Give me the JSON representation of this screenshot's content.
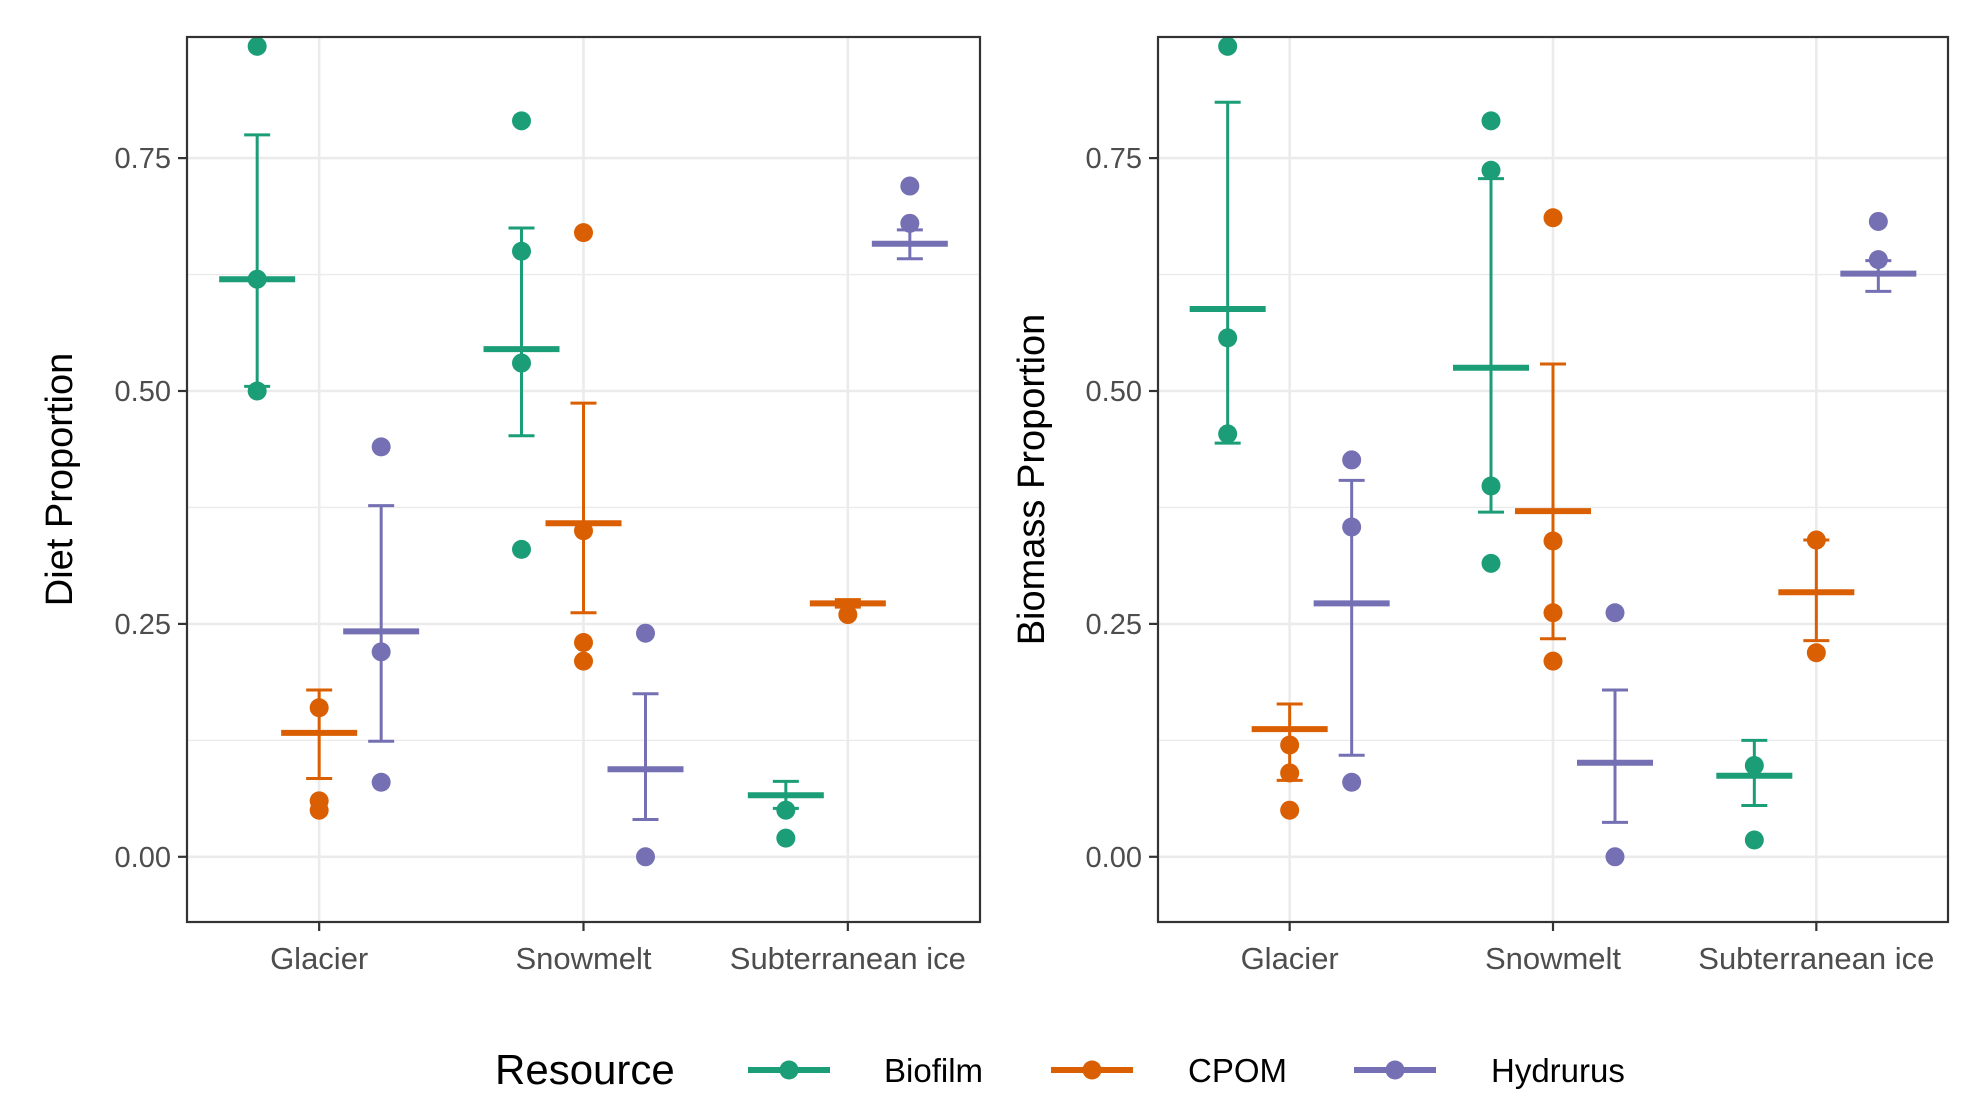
{
  "colors": {
    "Biofilm": "#1b9e77",
    "CPOM": "#d95f02",
    "Hydrurus": "#7570b3",
    "grid": "#ebebeb",
    "frame": "#333333",
    "tick_text": "#4d4d4d"
  },
  "legend": {
    "title": "Resource",
    "items": [
      "Biofilm",
      "CPOM",
      "Hydrurus"
    ]
  },
  "chart_data": [
    {
      "type": "scatter",
      "title": "",
      "xlabel": "",
      "ylabel": "Diet Proportion",
      "categories": [
        "Glacier",
        "Snowmelt",
        "Subterranean ice"
      ],
      "ylim": [
        -0.07,
        0.88
      ],
      "yticks": [
        0.0,
        0.25,
        0.5,
        0.75
      ],
      "ytick_labels": [
        "0.00",
        "0.25",
        "0.50",
        "0.75"
      ],
      "series": [
        {
          "name": "Biofilm",
          "groups": [
            {
              "category": "Glacier",
              "points": [
                0.87,
                0.62,
                0.5
              ],
              "mean": 0.62,
              "lower": 0.505,
              "upper": 0.775
            },
            {
              "category": "Snowmelt",
              "points": [
                0.79,
                0.65,
                0.53,
                0.33
              ],
              "mean": 0.545,
              "lower": 0.452,
              "upper": 0.675
            },
            {
              "category": "Subterranean ice",
              "points": [
                0.05,
                0.02
              ],
              "mean": 0.066,
              "lower": 0.052,
              "upper": 0.081
            }
          ]
        },
        {
          "name": "CPOM",
          "groups": [
            {
              "category": "Glacier",
              "points": [
                0.16,
                0.06,
                0.05
              ],
              "mean": 0.133,
              "lower": 0.084,
              "upper": 0.179
            },
            {
              "category": "Snowmelt",
              "points": [
                0.67,
                0.35,
                0.23,
                0.21
              ],
              "mean": 0.358,
              "lower": 0.262,
              "upper": 0.487
            },
            {
              "category": "Subterranean ice",
              "points": [
                0.26
              ],
              "mean": 0.272,
              "lower": 0.268,
              "upper": 0.276
            }
          ]
        },
        {
          "name": "Hydrurus",
          "groups": [
            {
              "category": "Glacier",
              "points": [
                0.44,
                0.22,
                0.08
              ],
              "mean": 0.242,
              "lower": 0.124,
              "upper": 0.377
            },
            {
              "category": "Snowmelt",
              "points": [
                0.24,
                0.0
              ],
              "mean": 0.094,
              "lower": 0.04,
              "upper": 0.175
            },
            {
              "category": "Subterranean ice",
              "points": [
                0.72,
                0.68
              ],
              "mean": 0.658,
              "lower": 0.642,
              "upper": 0.673
            }
          ]
        }
      ]
    },
    {
      "type": "scatter",
      "title": "",
      "xlabel": "",
      "ylabel": "Biomass Proportion",
      "categories": [
        "Glacier",
        "Snowmelt",
        "Subterranean ice"
      ],
      "ylim": [
        -0.07,
        0.88
      ],
      "yticks": [
        0.0,
        0.25,
        0.5,
        0.75
      ],
      "ytick_labels": [
        "0.00",
        "0.25",
        "0.50",
        "0.75"
      ],
      "series": [
        {
          "name": "Biofilm",
          "groups": [
            {
              "category": "Glacier",
              "points": [
                0.87,
                0.557,
                0.454
              ],
              "mean": 0.588,
              "lower": 0.444,
              "upper": 0.81
            },
            {
              "category": "Snowmelt",
              "points": [
                0.79,
                0.737,
                0.398,
                0.315
              ],
              "mean": 0.525,
              "lower": 0.37,
              "upper": 0.728
            },
            {
              "category": "Subterranean ice",
              "points": [
                0.098,
                0.018
              ],
              "mean": 0.087,
              "lower": 0.055,
              "upper": 0.125
            }
          ]
        },
        {
          "name": "CPOM",
          "groups": [
            {
              "category": "Glacier",
              "points": [
                0.12,
                0.09,
                0.05
              ],
              "mean": 0.137,
              "lower": 0.082,
              "upper": 0.164
            },
            {
              "category": "Snowmelt",
              "points": [
                0.686,
                0.339,
                0.262,
                0.21
              ],
              "mean": 0.371,
              "lower": 0.234,
              "upper": 0.529
            },
            {
              "category": "Subterranean ice",
              "points": [
                0.34,
                0.219
              ],
              "mean": 0.284,
              "lower": 0.232,
              "upper": 0.34
            }
          ]
        },
        {
          "name": "Hydrurus",
          "groups": [
            {
              "category": "Glacier",
              "points": [
                0.426,
                0.354,
                0.08
              ],
              "mean": 0.272,
              "lower": 0.109,
              "upper": 0.404
            },
            {
              "category": "Snowmelt",
              "points": [
                0.262,
                0.0
              ],
              "mean": 0.101,
              "lower": 0.037,
              "upper": 0.179
            },
            {
              "category": "Subterranean ice",
              "points": [
                0.682,
                0.641
              ],
              "mean": 0.626,
              "lower": 0.607,
              "upper": 0.64
            }
          ]
        }
      ]
    }
  ]
}
